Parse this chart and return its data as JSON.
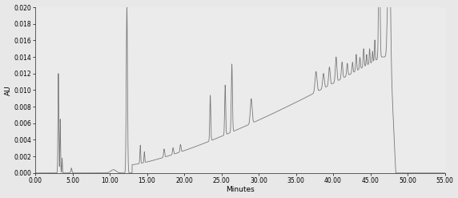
{
  "title": "",
  "xlabel": "Minutes",
  "ylabel": "AU",
  "xlim": [
    0.0,
    55.0
  ],
  "ylim": [
    0.0,
    0.02
  ],
  "yticks": [
    0.0,
    0.002,
    0.004,
    0.006,
    0.008,
    0.01,
    0.012,
    0.014,
    0.016,
    0.018,
    0.02
  ],
  "xticks": [
    0.0,
    5.0,
    10.0,
    15.0,
    20.0,
    25.0,
    30.0,
    35.0,
    40.0,
    45.0,
    50.0,
    55.0
  ],
  "line_color": "#777777",
  "line_width": 0.6,
  "bg_color": "#f0f0f0",
  "figsize": [
    5.72,
    2.47
  ],
  "dpi": 100
}
